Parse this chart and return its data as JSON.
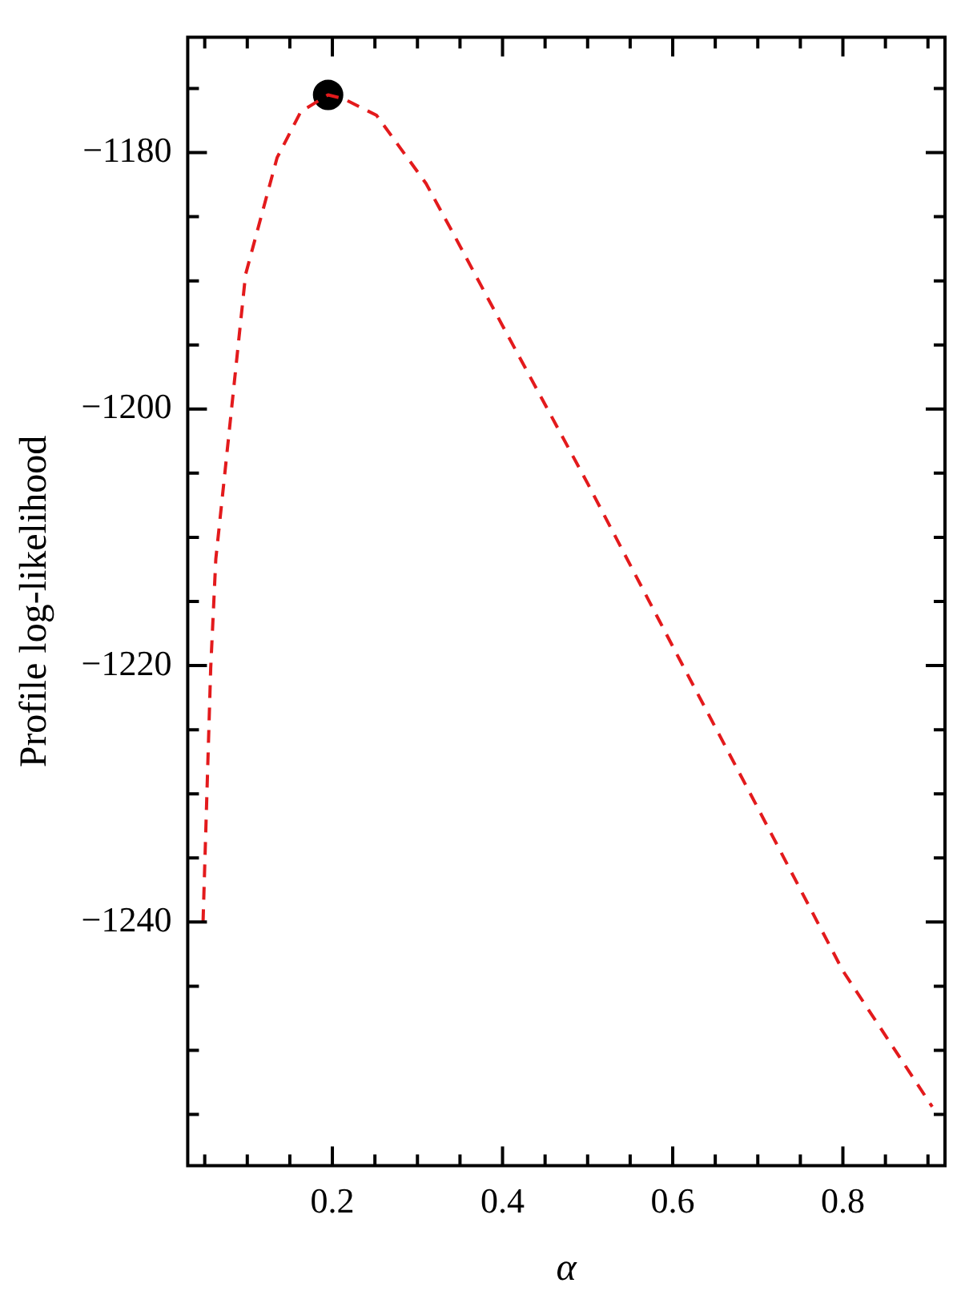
{
  "chart_data": {
    "type": "line",
    "xlabel": "α",
    "ylabel": "Profile log-likelihood",
    "xlim": [
      0.03,
      0.92
    ],
    "ylim": [
      -1259,
      -1171
    ],
    "xticks": [
      {
        "value": 0.05,
        "label": null
      },
      {
        "value": 0.1,
        "label": null
      },
      {
        "value": 0.15,
        "label": null
      },
      0.2,
      {
        "value": 0.25,
        "label": null
      },
      {
        "value": 0.3,
        "label": null
      },
      {
        "value": 0.35,
        "label": null
      },
      0.4,
      {
        "value": 0.45,
        "label": null
      },
      {
        "value": 0.5,
        "label": null
      },
      {
        "value": 0.55,
        "label": null
      },
      0.6,
      {
        "value": 0.65,
        "label": null
      },
      {
        "value": 0.7,
        "label": null
      },
      {
        "value": 0.75,
        "label": null
      },
      0.8,
      {
        "value": 0.85,
        "label": null
      },
      {
        "value": 0.9,
        "label": null
      }
    ],
    "yticks": [
      {
        "value": -1255,
        "label": null
      },
      {
        "value": -1250,
        "label": null
      },
      {
        "value": -1245,
        "label": null
      },
      {
        "value": -1240,
        "label": "−1240"
      },
      {
        "value": -1235,
        "label": null
      },
      {
        "value": -1230,
        "label": null
      },
      {
        "value": -1225,
        "label": null
      },
      {
        "value": -1220,
        "label": "−1220"
      },
      {
        "value": -1215,
        "label": null
      },
      {
        "value": -1210,
        "label": null
      },
      {
        "value": -1205,
        "label": null
      },
      {
        "value": -1200,
        "label": "−1200"
      },
      {
        "value": -1195,
        "label": null
      },
      {
        "value": -1190,
        "label": null
      },
      {
        "value": -1185,
        "label": null
      },
      {
        "value": -1180,
        "label": "−1180"
      },
      {
        "value": -1175,
        "label": null
      }
    ],
    "grid": false,
    "legend": false,
    "series": [
      {
        "color": "#e31a1c",
        "line_style": "dashed",
        "marker": "none",
        "x": [
          0.048,
          0.057,
          0.063,
          0.073,
          0.098,
          0.135,
          0.163,
          0.195,
          0.213,
          0.252,
          0.31,
          0.342,
          0.4,
          0.5,
          0.6,
          0.7,
          0.8,
          0.905
        ],
        "values": [
          -1240,
          -1220.2,
          -1211.7,
          -1205.4,
          -1189.5,
          -1180.4,
          -1176.8,
          -1175.5,
          -1175.8,
          -1177.1,
          -1182.4,
          -1186.3,
          -1193.5,
          -1205.8,
          -1218.5,
          -1231.1,
          -1243.8,
          -1254.4
        ]
      },
      {
        "type": "scatter",
        "color": "#000000",
        "marker": "circle",
        "x": [
          0.195
        ],
        "values": [
          -1175.5
        ]
      }
    ]
  }
}
